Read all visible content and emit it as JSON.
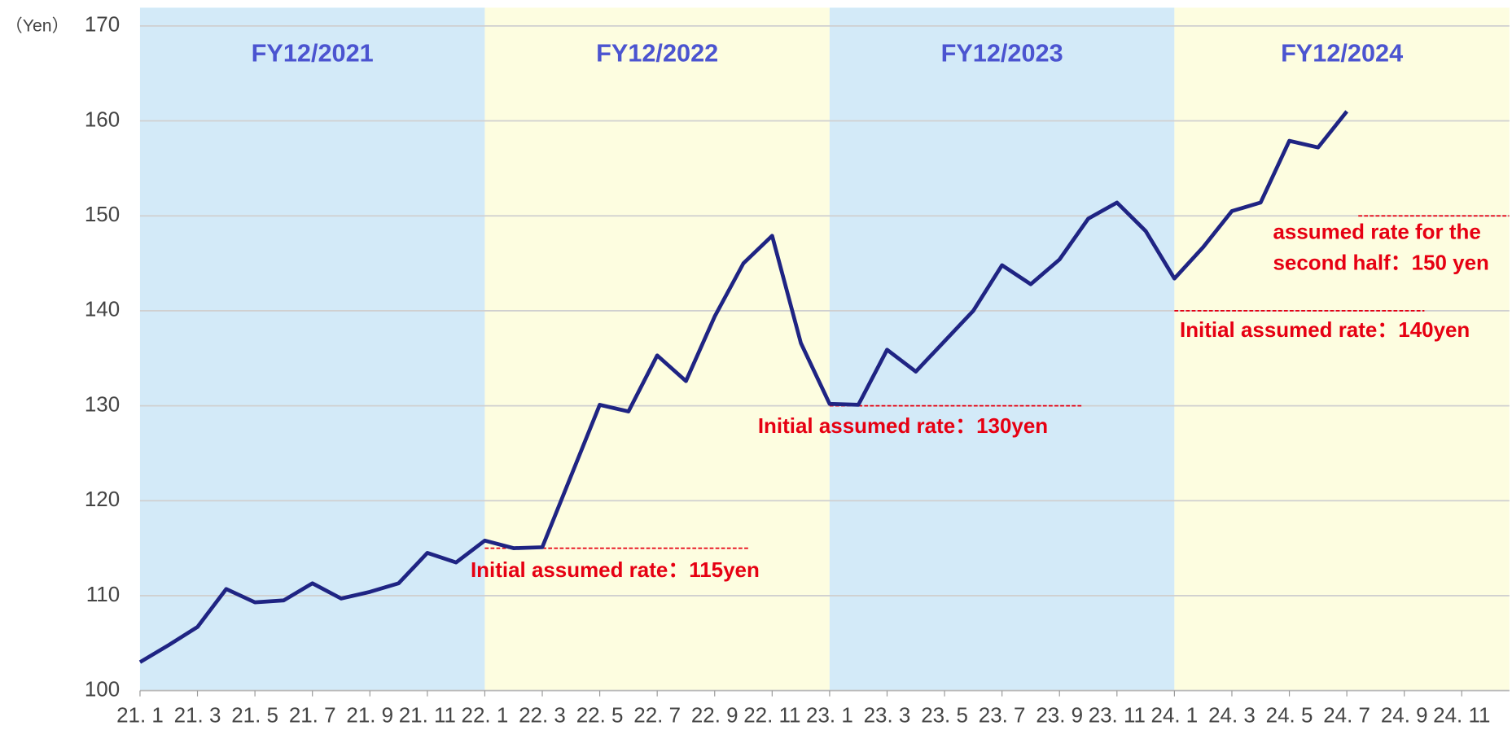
{
  "chart_data": {
    "type": "line",
    "y_label": "（Yen）",
    "categories": [
      "21. 1",
      null,
      "21. 3",
      null,
      "21. 5",
      null,
      "21. 7",
      null,
      "21. 9",
      null,
      "21. 11",
      null,
      "22. 1",
      null,
      "22. 3",
      null,
      "22. 5",
      null,
      "22. 7",
      null,
      "22. 9",
      null,
      "22. 11",
      null,
      "23. 1",
      null,
      "23. 3",
      null,
      "23. 5",
      null,
      "23. 7",
      null,
      "23. 9",
      null,
      "23. 11",
      null,
      "24. 1",
      null,
      "24. 3",
      null,
      "24. 5",
      null,
      "24. 7",
      null,
      "24. 9",
      null,
      "24. 11",
      null
    ],
    "series": [
      {
        "color": "#1f2483",
        "values": [
          103.0,
          104.8,
          106.7,
          110.7,
          109.3,
          109.5,
          111.3,
          109.7,
          110.4,
          111.3,
          114.5,
          113.5,
          115.8,
          115.0,
          115.1,
          122.6,
          130.1,
          129.4,
          135.3,
          132.6,
          139.4,
          145.0,
          147.9,
          136.6,
          130.2,
          130.1,
          135.9,
          133.6,
          136.8,
          140.0,
          144.8,
          142.8,
          145.4,
          149.7,
          151.4,
          148.4,
          143.4,
          146.7,
          150.5,
          151.4,
          157.9,
          157.2,
          161.0,
          null,
          null,
          null,
          null,
          null
        ]
      }
    ],
    "ylim": [
      100,
      170
    ],
    "yticks": [
      100,
      110,
      120,
      130,
      140,
      150,
      160,
      170
    ],
    "grid": true,
    "periods": [
      {
        "label": "FY12/2021",
        "color": "#d3eaf8"
      },
      {
        "label": "FY12/2022",
        "color": "#fdfde0"
      },
      {
        "label": "FY12/2023",
        "color": "#d3eaf8"
      },
      {
        "label": "FY12/2024",
        "color": "#fdfde0"
      }
    ],
    "annotations": [
      {
        "value": 115,
        "lines": [
          "Initial assumed rate：115yen"
        ],
        "color": "#e60012"
      },
      {
        "value": 130,
        "lines": [
          "Initial assumed rate：130yen"
        ],
        "color": "#e60012"
      },
      {
        "value": 140,
        "lines": [
          "Initial assumed rate：140yen"
        ],
        "color": "#e60012"
      },
      {
        "value": 150,
        "lines": [
          "assumed rate for the",
          "second half：150 yen"
        ],
        "color": "#e60012"
      }
    ]
  }
}
